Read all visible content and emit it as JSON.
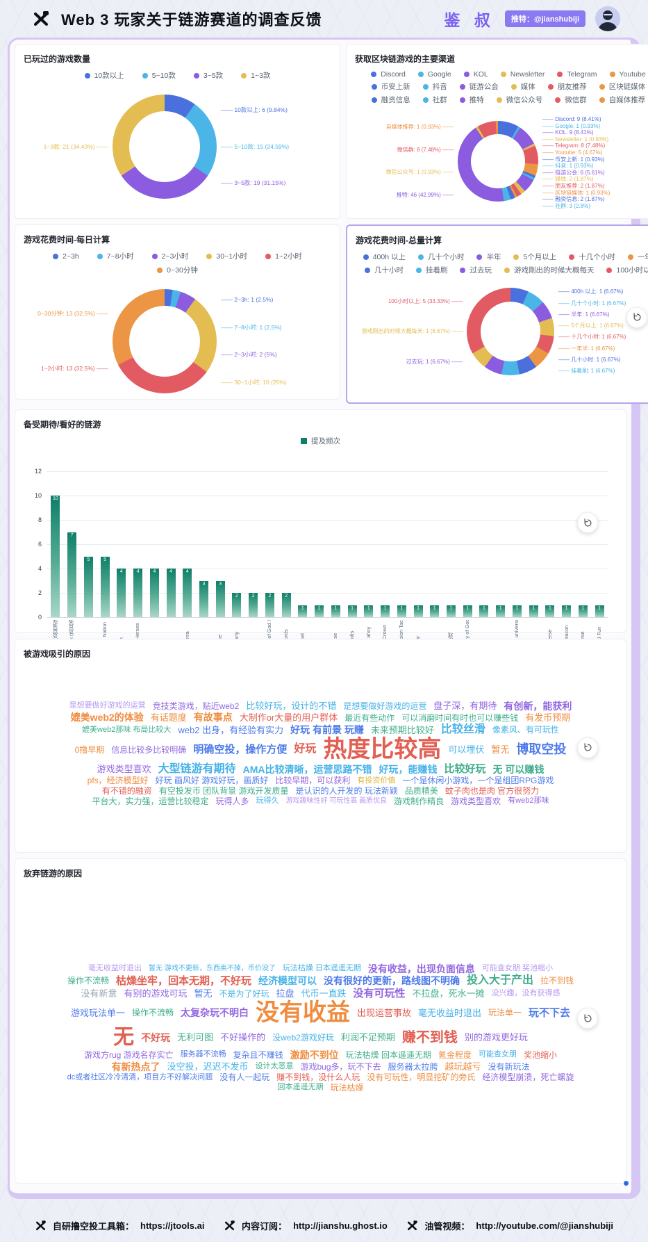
{
  "header": {
    "title": "Web 3 玩家关于链游赛道的调查反馈",
    "brand": "鉴 叔",
    "twitter_badge": "推特：@jianshubiji"
  },
  "palette": {
    "series": [
      "#4a70dd",
      "#4ab5e6",
      "#8b5ce0",
      "#e3bd52",
      "#e25b63",
      "#ec9544"
    ],
    "bar_top": "#0e7f68",
    "bar_bottom": "#a9d7c9",
    "cloud": [
      "#4e7bea",
      "#9166e0",
      "#ef8c3f",
      "#e25f53",
      "#45b2e8",
      "#dfb53c",
      "#3fae8c",
      "#9aa4b5",
      "#b79af0"
    ]
  },
  "chart_data": [
    {
      "type": "pie",
      "title": "已玩过的游戏数量",
      "items": [
        {
          "name": "10款以上",
          "value": 6,
          "pct": "9.84%",
          "side": "right"
        },
        {
          "name": "5~10款",
          "value": 15,
          "pct": "24.59%",
          "side": "right"
        },
        {
          "name": "3~5款",
          "value": 19,
          "pct": "31.15%",
          "side": "right"
        },
        {
          "name": "1~3款",
          "value": 21,
          "pct": "34.43%",
          "side": "left"
        }
      ]
    },
    {
      "type": "pie",
      "title": "获取区块链游戏的主要渠道",
      "items": [
        {
          "name": "Discord",
          "value": 9,
          "pct": "8.41%",
          "side": "right"
        },
        {
          "name": "Google",
          "value": 1,
          "pct": "0.93%",
          "side": "right"
        },
        {
          "name": "KOL",
          "value": 9,
          "pct": "8.41%",
          "side": "right"
        },
        {
          "name": "Newsletter",
          "value": 1,
          "pct": "0.93%",
          "side": "right"
        },
        {
          "name": "Telegram",
          "value": 8,
          "pct": "7.48%",
          "side": "right"
        },
        {
          "name": "Youtube",
          "value": 5,
          "pct": "4.67%",
          "side": "right"
        },
        {
          "name": "币安上新",
          "value": 1,
          "pct": "0.93%",
          "side": "right"
        },
        {
          "name": "抖音",
          "value": 1,
          "pct": "0.93%",
          "side": "right"
        },
        {
          "name": "链游公会",
          "value": 6,
          "pct": "5.61%",
          "side": "right"
        },
        {
          "name": "媒体",
          "value": 2,
          "pct": "1.87%",
          "side": "right"
        },
        {
          "name": "朋友推荐",
          "value": 2,
          "pct": "1.87%",
          "side": "right"
        },
        {
          "name": "区块链媒体",
          "value": 1,
          "pct": "0.93%",
          "side": "right"
        },
        {
          "name": "融资信息",
          "value": 2,
          "pct": "1.87%",
          "side": "right"
        },
        {
          "name": "社群",
          "value": 3,
          "pct": "2.8%",
          "side": "right"
        },
        {
          "name": "推特",
          "value": 46,
          "pct": "42.99%",
          "side": "left"
        },
        {
          "name": "微信公众号",
          "value": 1,
          "pct": "0.93%",
          "side": "left"
        },
        {
          "name": "微信群",
          "value": 8,
          "pct": "7.48%",
          "side": "left"
        },
        {
          "name": "自媒体推荐",
          "value": 1,
          "pct": "0.93%",
          "side": "left"
        }
      ]
    },
    {
      "type": "pie",
      "title": "游戏花费时间-每日计算",
      "items": [
        {
          "name": "2~3h",
          "value": 1,
          "pct": "2.5%",
          "side": "right"
        },
        {
          "name": "7~8小时",
          "value": 1,
          "pct": "2.5%",
          "side": "right"
        },
        {
          "name": "2~3小时",
          "value": 2,
          "pct": "5%",
          "side": "right"
        },
        {
          "name": "30~1小时",
          "value": 10,
          "pct": "25%",
          "side": "right"
        },
        {
          "name": "1~2小时",
          "value": 13,
          "pct": "32.5%",
          "side": "left"
        },
        {
          "name": "0~30分钟",
          "value": 13,
          "pct": "32.5%",
          "side": "left"
        }
      ]
    },
    {
      "type": "pie",
      "title": "游戏花费时间-总量计算",
      "items": [
        {
          "name": "400h 以上",
          "value": 1,
          "pct": "6.67%",
          "side": "right"
        },
        {
          "name": "几十个小时",
          "value": 1,
          "pct": "6.67%",
          "side": "right"
        },
        {
          "name": "半年",
          "value": 1,
          "pct": "6.67%",
          "side": "right"
        },
        {
          "name": "5个月以上",
          "value": 1,
          "pct": "6.67%",
          "side": "right"
        },
        {
          "name": "十几个小时",
          "value": 1,
          "pct": "6.67%",
          "side": "right"
        },
        {
          "name": "一年半",
          "value": 1,
          "pct": "6.67%",
          "side": "right"
        },
        {
          "name": "几十小时",
          "value": 1,
          "pct": "6.67%",
          "side": "right"
        },
        {
          "name": "挂着刷",
          "value": 1,
          "pct": "6.67%",
          "side": "right"
        },
        {
          "name": "过去玩",
          "value": 1,
          "pct": "6.67%",
          "side": "left"
        },
        {
          "name": "游戏刚出的时候大概每天",
          "value": 1,
          "pct": "6.67%",
          "side": "left"
        },
        {
          "name": "100小时以上",
          "value": 5,
          "pct": "33.33%",
          "side": "left"
        }
      ]
    },
    {
      "type": "bar",
      "title": "备受期待/看好的链游",
      "legend": "提及频次",
      "ylim": [
        0,
        12
      ],
      "yticks": [
        0,
        2,
        4,
        6,
        8,
        10,
        12
      ],
      "categories": [
        "Xterio(及其游戏)",
        "Matr1x (及其游戏)",
        "Pixels",
        "Space Nation",
        "seraph",
        "Nyan Heroes",
        "BAC",
        "SND",
        "Lumiterra",
        "TON",
        "Big time",
        "KartParty",
        "EAFS",
        "Blade of God X",
        "Blocklords",
        "shrapnel",
        "Mavia",
        "Ultiverse",
        "Metabolts",
        "Cards ahoy",
        "Night Crown",
        "Champion Tactics",
        "Cellular",
        "LSE7",
        "博彩游戏",
        "Destiny of Gods",
        "EAC",
        "ZTR",
        "Maple universe",
        "forge",
        "Mobiverse",
        "The Beacon",
        "Puffverse",
        "Crystal Fun"
      ],
      "values": [
        10,
        7,
        5,
        5,
        4,
        4,
        4,
        4,
        4,
        3,
        3,
        2,
        2,
        2,
        2,
        1,
        1,
        1,
        1,
        1,
        1,
        1,
        1,
        1,
        1,
        1,
        1,
        1,
        1,
        1,
        1,
        1,
        1,
        1
      ]
    },
    {
      "type": "wordcloud",
      "title": "被游戏吸引的原因",
      "words": [
        {
          "t": "是想要做好游戏的运营",
          "s": 11,
          "c": 8
        },
        {
          "t": "竞技类游戏，贴近web2",
          "s": 12,
          "c": 1
        },
        {
          "t": "比较好玩，设计的不错",
          "s": 13,
          "c": 4
        },
        {
          "t": "是想要做好游戏的运营",
          "s": 12,
          "c": 4
        },
        {
          "t": "盘子深，有期待",
          "s": 13,
          "c": 1
        },
        {
          "t": "有创新，能获利",
          "s": 14,
          "c": 1
        },
        {
          "t": "媲美web2的体验",
          "s": 14,
          "c": 2
        },
        {
          "t": "有话题度",
          "s": 13,
          "c": 2
        },
        {
          "t": "有故事点",
          "s": 14,
          "c": 2
        },
        {
          "t": "大制作or大量的用户群体",
          "s": 13,
          "c": 3
        },
        {
          "t": "最近有些动作",
          "s": 12,
          "c": 6
        },
        {
          "t": "可以消磨时间有时也可以赚些钱",
          "s": 12,
          "c": 6
        },
        {
          "t": "有发币预期",
          "s": 13,
          "c": 2
        },
        {
          "t": "媲美web2那味 布局比较大",
          "s": 11,
          "c": 6
        },
        {
          "t": "web2 出身，有经验有实力",
          "s": 13,
          "c": 0
        },
        {
          "t": "好玩 有前景 玩赚",
          "s": 14,
          "c": 0
        },
        {
          "t": "未来预期比较好",
          "s": 13,
          "c": 6
        },
        {
          "t": "比较丝滑",
          "s": 16,
          "c": 4
        },
        {
          "t": "像素风、有可玩性",
          "s": 12,
          "c": 4
        },
        {
          "t": "0撸早期",
          "s": 12,
          "c": 2
        },
        {
          "t": "信息比较多比较明确",
          "s": 12,
          "c": 1
        },
        {
          "t": "明确空投，操作方便",
          "s": 15,
          "c": 0
        },
        {
          "t": "好玩",
          "s": 16,
          "c": 3
        },
        {
          "t": "热度比较高",
          "s": 34,
          "c": 3
        },
        {
          "t": "可以埋伏",
          "s": 13,
          "c": 4
        },
        {
          "t": "暂无",
          "s": 13,
          "c": 2
        },
        {
          "t": "博取空投",
          "s": 18,
          "c": 0
        },
        {
          "t": "游戏类型喜欢",
          "s": 13,
          "c": 1
        },
        {
          "t": "大型链游有期待",
          "s": 16,
          "c": 4
        },
        {
          "t": "AMA比较清晰，运营思路不错",
          "s": 14,
          "c": 4
        },
        {
          "t": "好玩，能赚钱",
          "s": 14,
          "c": 4
        },
        {
          "t": "比较好玩",
          "s": 15,
          "c": 6
        },
        {
          "t": "无 可以赚钱",
          "s": 14,
          "c": 6
        },
        {
          "t": "pfs，经济模型好",
          "s": 12,
          "c": 2
        },
        {
          "t": "好玩 画风好 游戏好玩，画质好",
          "s": 12,
          "c": 0
        },
        {
          "t": "比较早期，可以获利",
          "s": 12,
          "c": 1
        },
        {
          "t": "有投资价值",
          "s": 11,
          "c": 5
        },
        {
          "t": "一个是休闲小游戏，一个是组团RPG游戏",
          "s": 12,
          "c": 0
        },
        {
          "t": "有不错的融资",
          "s": 12,
          "c": 3
        },
        {
          "t": "有空投发币 团队背景 游戏开发质量",
          "s": 12,
          "c": 6
        },
        {
          "t": "是认识的人开发的 玩法新颖",
          "s": 12,
          "c": 0
        },
        {
          "t": "品质精美",
          "s": 12,
          "c": 6
        },
        {
          "t": "蚊子肉也是肉 官方很努力",
          "s": 12,
          "c": 3
        },
        {
          "t": "平台大，实力强，运营比较稳定",
          "s": 12,
          "c": 6
        },
        {
          "t": "玩得人多",
          "s": 12,
          "c": 1
        },
        {
          "t": "玩得久",
          "s": 11,
          "c": 4
        },
        {
          "t": "游戏趣味性好 可玩性高 画质优良",
          "s": 10,
          "c": 8
        },
        {
          "t": "游戏制作精良",
          "s": 12,
          "c": 6
        },
        {
          "t": "游戏类型喜欢",
          "s": 12,
          "c": 1
        },
        {
          "t": "有web2那味",
          "s": 11,
          "c": 1
        }
      ]
    },
    {
      "type": "wordcloud",
      "title": "放弃链游的原因",
      "words": [
        {
          "t": "毫无收益时退出",
          "s": 11,
          "c": 8
        },
        {
          "t": "暂无 游戏不更新，东西卖不掉，币价没了",
          "s": 10,
          "c": 4
        },
        {
          "t": "玩法枯燥 日本遥遥无期",
          "s": 11,
          "c": 4
        },
        {
          "t": "没有收益，出现负面信息",
          "s": 14,
          "c": 1
        },
        {
          "t": "可能查女朋 奖池缩小",
          "s": 11,
          "c": 8
        },
        {
          "t": "操作不流畅",
          "s": 12,
          "c": 6
        },
        {
          "t": "枯燥坐牢，回本无期，不好玩",
          "s": 15,
          "c": 3
        },
        {
          "t": "经济模型可以",
          "s": 14,
          "c": 4
        },
        {
          "t": "没有很好的更新，路线图不明确",
          "s": 14,
          "c": 0
        },
        {
          "t": "投入大于产出",
          "s": 16,
          "c": 6
        },
        {
          "t": "拉不到钱",
          "s": 12,
          "c": 2
        },
        {
          "t": "没有新意",
          "s": 13,
          "c": 7
        },
        {
          "t": "有别的游戏可玩",
          "s": 13,
          "c": 1
        },
        {
          "t": "暂无",
          "s": 13,
          "c": 0
        },
        {
          "t": "不是为了好玩",
          "s": 12,
          "c": 4
        },
        {
          "t": "拉盘",
          "s": 13,
          "c": 0
        },
        {
          "t": "代币一直跌",
          "s": 13,
          "c": 4
        },
        {
          "t": "没有可玩性",
          "s": 15,
          "c": 1
        },
        {
          "t": "不拉盘，死水一摊",
          "s": 13,
          "c": 6
        },
        {
          "t": "没兴趣，没有获得感",
          "s": 11,
          "c": 8
        },
        {
          "t": "游戏玩法单一",
          "s": 13,
          "c": 0
        },
        {
          "t": "操作不流畅",
          "s": 12,
          "c": 6
        },
        {
          "t": "太复杂玩不明白",
          "s": 14,
          "c": 1
        },
        {
          "t": "没有收益",
          "s": 34,
          "c": 2
        },
        {
          "t": "出现运营事故",
          "s": 13,
          "c": 3
        },
        {
          "t": "毫无收益时退出",
          "s": 13,
          "c": 4
        },
        {
          "t": "玩法单一",
          "s": 12,
          "c": 2
        },
        {
          "t": "玩不下去",
          "s": 15,
          "c": 0
        },
        {
          "t": "无",
          "s": 30,
          "c": 3
        },
        {
          "t": "不好玩",
          "s": 14,
          "c": 3
        },
        {
          "t": "无利可图",
          "s": 13,
          "c": 6
        },
        {
          "t": "不好操作的",
          "s": 13,
          "c": 1
        },
        {
          "t": "没web2游戏好玩",
          "s": 12,
          "c": 4
        },
        {
          "t": "利润不足预期",
          "s": 13,
          "c": 6
        },
        {
          "t": "赚不到钱",
          "s": 20,
          "c": 3
        },
        {
          "t": "别的游戏更好玩",
          "s": 13,
          "c": 1
        },
        {
          "t": "游戏方rug 游戏名存实亡",
          "s": 12,
          "c": 1
        },
        {
          "t": "服务器不流畅",
          "s": 11,
          "c": 0
        },
        {
          "t": "复杂且不赚钱",
          "s": 12,
          "c": 0
        },
        {
          "t": "激励不到位",
          "s": 14,
          "c": 2
        },
        {
          "t": "玩法枯燥 回本遥遥无期",
          "s": 12,
          "c": 6
        },
        {
          "t": "氪金程度",
          "s": 12,
          "c": 2
        },
        {
          "t": "可能查女朋",
          "s": 11,
          "c": 4
        },
        {
          "t": "奖池缩小",
          "s": 12,
          "c": 3
        },
        {
          "t": "有新热点了",
          "s": 14,
          "c": 2
        },
        {
          "t": "没空投，迟迟不发币",
          "s": 13,
          "c": 4
        },
        {
          "t": "设计太恶意",
          "s": 11,
          "c": 6
        },
        {
          "t": "游戏bug多，玩不下去",
          "s": 12,
          "c": 1
        },
        {
          "t": "服务器太拉胯",
          "s": 12,
          "c": 0
        },
        {
          "t": "越玩越亏",
          "s": 13,
          "c": 2
        },
        {
          "t": "没有新玩法",
          "s": 12,
          "c": 0
        },
        {
          "t": "dc或者社区冷冷清清，项目方不好解决问题",
          "s": 11,
          "c": 0
        },
        {
          "t": "没有人一起玩",
          "s": 12,
          "c": 0
        },
        {
          "t": "赚不到钱，没什么人玩",
          "s": 12,
          "c": 3
        },
        {
          "t": "没有可玩性，明显挖矿的旁氏",
          "s": 12,
          "c": 2
        },
        {
          "t": "经济模型崩溃，死亡螺旋",
          "s": 12,
          "c": 1
        },
        {
          "t": "回本遥遥无期",
          "s": 11,
          "c": 6
        },
        {
          "t": "玩法枯燥",
          "s": 12,
          "c": 2
        }
      ]
    }
  ],
  "footer": {
    "items": [
      {
        "label": "自研撸空投工具箱：",
        "url": "https://jtools.ai"
      },
      {
        "label": "内容订阅：",
        "url": "http://jianshu.ghost.io"
      },
      {
        "label": "油管视频：",
        "url": "http://youtube.com/@jianshubiji"
      }
    ]
  }
}
